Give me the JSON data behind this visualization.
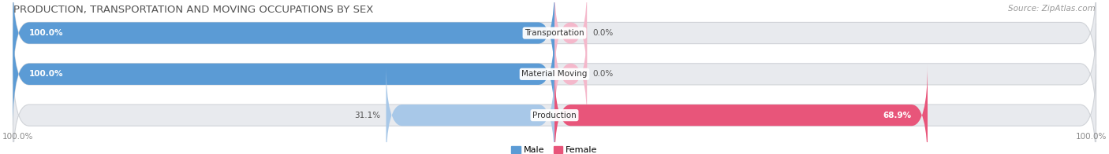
{
  "title": "PRODUCTION, TRANSPORTATION AND MOVING OCCUPATIONS BY SEX",
  "source": "Source: ZipAtlas.com",
  "categories": [
    "Transportation",
    "Material Moving",
    "Production"
  ],
  "male_values": [
    100.0,
    100.0,
    31.1
  ],
  "female_values": [
    0.0,
    0.0,
    68.9
  ],
  "male_color_full": "#5b9bd5",
  "male_color_partial": "#a8c8e8",
  "female_color_small": "#f4b8cb",
  "female_color_full": "#e8557a",
  "bg_color": "#ffffff",
  "bar_bg_color": "#e8eaee",
  "title_color": "#555555",
  "label_color": "#555555",
  "source_color": "#999999",
  "tick_color": "#888888",
  "title_fontsize": 9.5,
  "label_fontsize": 7.5,
  "tick_fontsize": 7.5,
  "legend_fontsize": 8,
  "source_fontsize": 7.5
}
